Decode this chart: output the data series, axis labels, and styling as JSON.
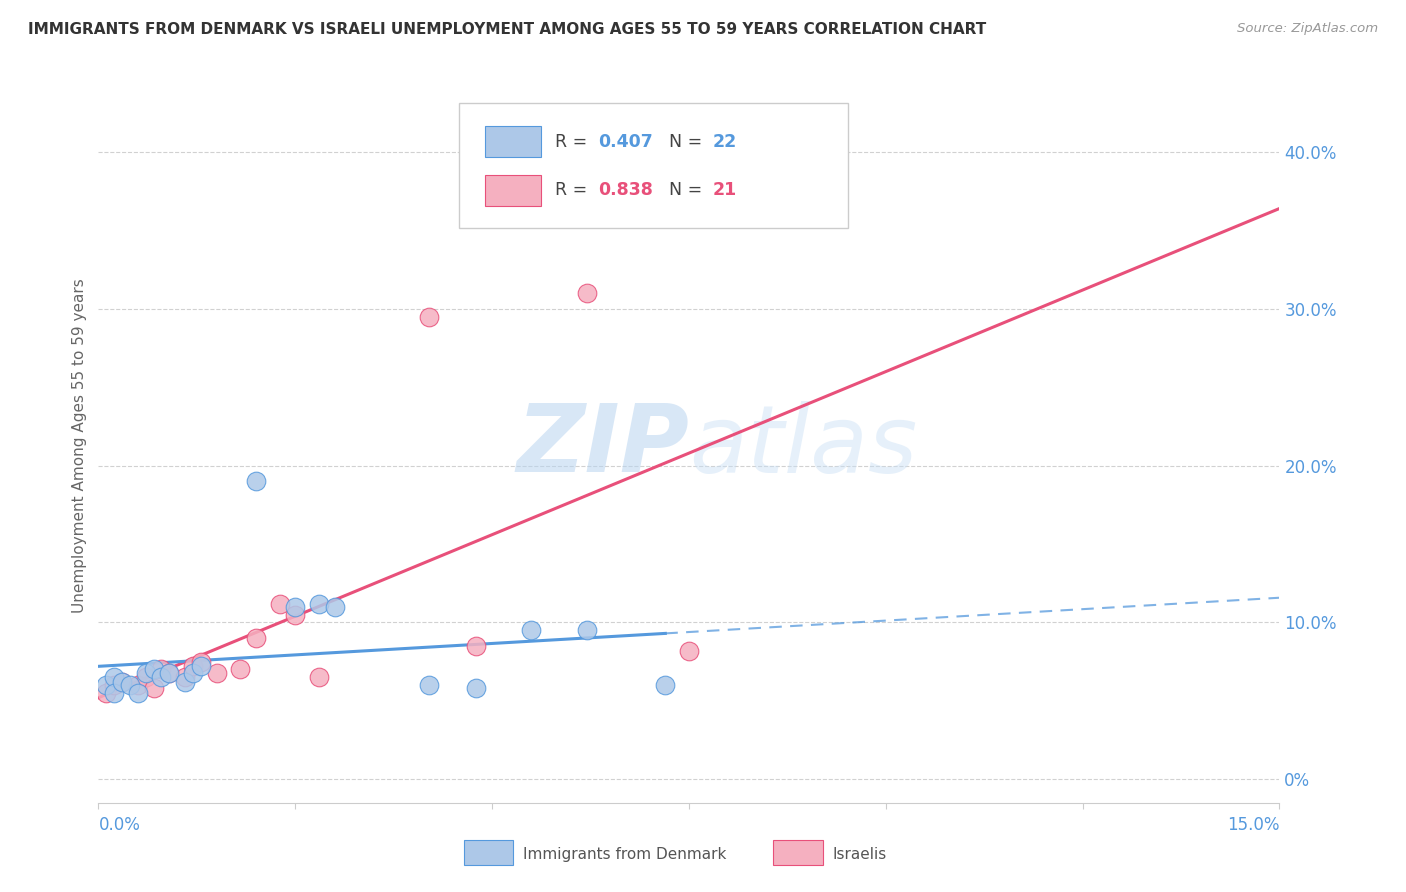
{
  "title": "IMMIGRANTS FROM DENMARK VS ISRAELI UNEMPLOYMENT AMONG AGES 55 TO 59 YEARS CORRELATION CHART",
  "source": "Source: ZipAtlas.com",
  "ylabel": "Unemployment Among Ages 55 to 59 years",
  "legend_denmark_R": "0.407",
  "legend_denmark_N": "22",
  "legend_israel_R": "0.838",
  "legend_israel_N": "21",
  "denmark_color": "#adc8e8",
  "denmark_line_color": "#5599dd",
  "israel_color": "#f5b0c0",
  "israel_line_color": "#e8507a",
  "watermark_zip": "ZIP",
  "watermark_atlas": "atlas",
  "xmin": 0.0,
  "xmax": 0.15,
  "ymin": -0.015,
  "ymax": 0.44,
  "yticks": [
    0.0,
    0.1,
    0.2,
    0.3,
    0.4
  ],
  "ytick_labels": [
    "0%",
    "10.0%",
    "20.0%",
    "30.0%",
    "40.0%"
  ],
  "denmark_x": [
    0.001,
    0.002,
    0.002,
    0.003,
    0.004,
    0.005,
    0.006,
    0.007,
    0.008,
    0.009,
    0.011,
    0.012,
    0.013,
    0.02,
    0.025,
    0.028,
    0.03,
    0.042,
    0.048,
    0.055,
    0.062,
    0.072
  ],
  "denmark_y": [
    0.06,
    0.065,
    0.055,
    0.062,
    0.06,
    0.055,
    0.068,
    0.07,
    0.065,
    0.068,
    0.062,
    0.068,
    0.072,
    0.19,
    0.11,
    0.112,
    0.11,
    0.06,
    0.058,
    0.095,
    0.095,
    0.06
  ],
  "israel_x": [
    0.001,
    0.002,
    0.003,
    0.005,
    0.006,
    0.007,
    0.008,
    0.009,
    0.011,
    0.012,
    0.013,
    0.015,
    0.018,
    0.02,
    0.023,
    0.025,
    0.028,
    0.042,
    0.048,
    0.062,
    0.075
  ],
  "israel_y": [
    0.055,
    0.06,
    0.062,
    0.06,
    0.065,
    0.058,
    0.07,
    0.068,
    0.065,
    0.072,
    0.075,
    0.068,
    0.07,
    0.09,
    0.112,
    0.105,
    0.065,
    0.295,
    0.085,
    0.31,
    0.082
  ],
  "background_color": "#ffffff",
  "grid_color": "#cccccc",
  "spine_color": "#cccccc"
}
